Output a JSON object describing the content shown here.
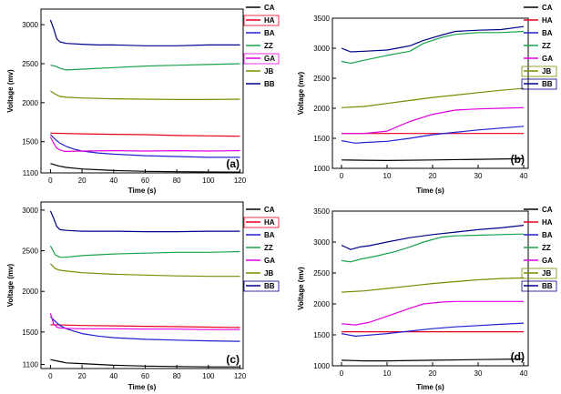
{
  "figure_title": "Voltage vs time, four panels",
  "colors": {
    "CA": "#000000",
    "HA": "#e8001e",
    "BA": "#2020d0",
    "ZZ": "#17a34a",
    "GA": "#e000e0",
    "JB": "#7a8a00",
    "BB": "#00008b"
  },
  "chart_data": [
    {
      "id": "a",
      "panel_label": "(a)",
      "type": "line",
      "xlabel": "Time (s)",
      "ylabel": "Voltage (mv)",
      "xlim": [
        -6,
        122
      ],
      "ylim": [
        1100,
        3200
      ],
      "xticks": [
        0,
        20,
        40,
        60,
        80,
        100,
        120
      ],
      "yticks": [
        1100,
        1500,
        2000,
        2500,
        3000
      ],
      "legend": [
        "CA",
        "HA",
        "BA",
        "ZZ",
        "GA",
        "JB",
        "BB"
      ],
      "legend_boxed": [
        "HA",
        "GA"
      ],
      "series": [
        {
          "name": "CA",
          "x": [
            0,
            5,
            10,
            20,
            40,
            60,
            80,
            100,
            120
          ],
          "values": [
            1220,
            1190,
            1170,
            1150,
            1130,
            1120,
            1115,
            1112,
            1110
          ]
        },
        {
          "name": "HA",
          "x": [
            0,
            20,
            40,
            60,
            80,
            100,
            120
          ],
          "values": [
            1610,
            1600,
            1595,
            1590,
            1580,
            1575,
            1570
          ]
        },
        {
          "name": "BA",
          "x": [
            0,
            3,
            6,
            10,
            15,
            20,
            30,
            40,
            60,
            80,
            100,
            120
          ],
          "values": [
            1590,
            1530,
            1480,
            1440,
            1405,
            1380,
            1355,
            1340,
            1320,
            1310,
            1300,
            1300
          ]
        },
        {
          "name": "ZZ",
          "x": [
            0,
            3,
            6,
            10,
            20,
            40,
            60,
            80,
            100,
            120
          ],
          "values": [
            2480,
            2470,
            2440,
            2420,
            2430,
            2450,
            2470,
            2480,
            2490,
            2500
          ]
        },
        {
          "name": "GA",
          "x": [
            0,
            2,
            4,
            6,
            8,
            10,
            20,
            40,
            60,
            80,
            100,
            120
          ],
          "values": [
            1560,
            1480,
            1420,
            1395,
            1380,
            1375,
            1380,
            1385,
            1380,
            1385,
            1380,
            1385
          ]
        },
        {
          "name": "JB",
          "x": [
            0,
            3,
            6,
            10,
            20,
            40,
            60,
            80,
            100,
            120
          ],
          "values": [
            2150,
            2110,
            2080,
            2070,
            2060,
            2050,
            2045,
            2040,
            2040,
            2045
          ]
        },
        {
          "name": "BB",
          "x": [
            0,
            2,
            4,
            6,
            10,
            20,
            30,
            40,
            60,
            80,
            100,
            120
          ],
          "values": [
            3060,
            2950,
            2820,
            2780,
            2760,
            2750,
            2740,
            2740,
            2730,
            2730,
            2740,
            2740
          ]
        }
      ]
    },
    {
      "id": "b",
      "panel_label": "(b)",
      "type": "line",
      "xlabel": "Time (s)",
      "ylabel": "Voltage (mv)",
      "xlim": [
        -2,
        41
      ],
      "ylim": [
        1000,
        3500
      ],
      "xticks": [
        0,
        10,
        20,
        30,
        40
      ],
      "yticks": [
        1000,
        1500,
        2000,
        2500,
        3000,
        3500
      ],
      "legend": [
        "CA",
        "HA",
        "BA",
        "ZZ",
        "GA",
        "JB",
        "BB"
      ],
      "legend_boxed": [
        "JB",
        "BB"
      ],
      "series": [
        {
          "name": "CA",
          "x": [
            0,
            5,
            10,
            20,
            30,
            40
          ],
          "values": [
            1140,
            1135,
            1130,
            1140,
            1150,
            1160
          ]
        },
        {
          "name": "HA",
          "x": [
            0,
            10,
            20,
            30,
            40
          ],
          "values": [
            1580,
            1580,
            1580,
            1580,
            1580
          ]
        },
        {
          "name": "BA",
          "x": [
            0,
            3,
            5,
            10,
            15,
            20,
            25,
            30,
            35,
            40
          ],
          "values": [
            1460,
            1420,
            1430,
            1450,
            1500,
            1560,
            1600,
            1640,
            1670,
            1700
          ]
        },
        {
          "name": "ZZ",
          "x": [
            0,
            2,
            5,
            10,
            15,
            18,
            22,
            25,
            30,
            35,
            40
          ],
          "values": [
            2780,
            2750,
            2800,
            2880,
            2950,
            3080,
            3180,
            3230,
            3260,
            3260,
            3280
          ]
        },
        {
          "name": "GA",
          "x": [
            0,
            5,
            10,
            15,
            20,
            25,
            30,
            35,
            40
          ],
          "values": [
            1580,
            1580,
            1620,
            1780,
            1900,
            1970,
            1990,
            2000,
            2010
          ]
        },
        {
          "name": "JB",
          "x": [
            0,
            5,
            10,
            15,
            20,
            25,
            30,
            35,
            40
          ],
          "values": [
            2010,
            2030,
            2080,
            2130,
            2180,
            2220,
            2260,
            2300,
            2330
          ]
        },
        {
          "name": "BB",
          "x": [
            0,
            2,
            5,
            10,
            15,
            18,
            22,
            25,
            30,
            35,
            40
          ],
          "values": [
            3000,
            2940,
            2950,
            2970,
            3040,
            3130,
            3220,
            3280,
            3300,
            3310,
            3360
          ]
        }
      ]
    },
    {
      "id": "c",
      "panel_label": "(c)",
      "type": "line",
      "xlabel": "Time (s)",
      "ylabel": "Voltage (mv)",
      "xlim": [
        -6,
        122
      ],
      "ylim": [
        1050,
        3100
      ],
      "xticks": [
        0,
        20,
        40,
        60,
        80,
        100,
        120
      ],
      "yticks": [
        1100,
        1500,
        2000,
        2500,
        3000
      ],
      "legend": [
        "CA",
        "HA",
        "BA",
        "ZZ",
        "GA",
        "JB",
        "BB"
      ],
      "legend_boxed": [
        "HA",
        "BB"
      ],
      "series": [
        {
          "name": "CA",
          "x": [
            0,
            5,
            10,
            20,
            40,
            60,
            80,
            100,
            120
          ],
          "values": [
            1160,
            1140,
            1120,
            1110,
            1090,
            1080,
            1075,
            1070,
            1070
          ]
        },
        {
          "name": "HA",
          "x": [
            0,
            20,
            40,
            60,
            80,
            100,
            120
          ],
          "values": [
            1590,
            1580,
            1575,
            1570,
            1565,
            1560,
            1555
          ]
        },
        {
          "name": "BA",
          "x": [
            0,
            3,
            6,
            10,
            15,
            20,
            30,
            40,
            60,
            80,
            100,
            120
          ],
          "values": [
            1690,
            1630,
            1580,
            1540,
            1510,
            1480,
            1450,
            1430,
            1410,
            1400,
            1390,
            1385
          ]
        },
        {
          "name": "ZZ",
          "x": [
            0,
            3,
            6,
            10,
            20,
            40,
            60,
            80,
            100,
            120
          ],
          "values": [
            2560,
            2450,
            2420,
            2420,
            2440,
            2460,
            2470,
            2480,
            2480,
            2490
          ]
        },
        {
          "name": "GA",
          "x": [
            0,
            2,
            4,
            6,
            10,
            20,
            40,
            60,
            80,
            100,
            120
          ],
          "values": [
            1730,
            1600,
            1560,
            1550,
            1545,
            1540,
            1540,
            1535,
            1535,
            1530,
            1530
          ]
        },
        {
          "name": "JB",
          "x": [
            0,
            3,
            6,
            10,
            20,
            40,
            60,
            80,
            100,
            120
          ],
          "values": [
            2340,
            2280,
            2260,
            2250,
            2230,
            2210,
            2200,
            2190,
            2185,
            2185
          ]
        },
        {
          "name": "BB",
          "x": [
            0,
            2,
            4,
            6,
            10,
            20,
            30,
            40,
            60,
            80,
            100,
            120
          ],
          "values": [
            2990,
            2900,
            2800,
            2760,
            2750,
            2740,
            2740,
            2740,
            2735,
            2735,
            2740,
            2740
          ]
        }
      ]
    },
    {
      "id": "d",
      "panel_label": "(d)",
      "type": "line",
      "xlabel": "Time (s)",
      "ylabel": "Voltage (mv)",
      "xlim": [
        -2,
        41
      ],
      "ylim": [
        1000,
        3500
      ],
      "xticks": [
        0,
        10,
        20,
        30,
        40
      ],
      "yticks": [
        1000,
        1500,
        2000,
        2500,
        3000,
        3500
      ],
      "legend": [
        "CA",
        "HA",
        "BA",
        "ZZ",
        "GA",
        "JB",
        "BB"
      ],
      "legend_boxed": [
        "JB",
        "BB"
      ],
      "series": [
        {
          "name": "CA",
          "x": [
            0,
            5,
            10,
            20,
            30,
            40
          ],
          "values": [
            1090,
            1080,
            1080,
            1090,
            1100,
            1110
          ]
        },
        {
          "name": "HA",
          "x": [
            0,
            10,
            20,
            30,
            40
          ],
          "values": [
            1550,
            1550,
            1550,
            1550,
            1550
          ]
        },
        {
          "name": "BA",
          "x": [
            0,
            3,
            5,
            10,
            15,
            20,
            25,
            30,
            35,
            40
          ],
          "values": [
            1520,
            1480,
            1490,
            1520,
            1560,
            1600,
            1630,
            1650,
            1670,
            1690
          ]
        },
        {
          "name": "ZZ",
          "x": [
            0,
            2,
            4,
            8,
            12,
            15,
            18,
            22,
            25,
            30,
            35,
            40
          ],
          "values": [
            2700,
            2680,
            2720,
            2780,
            2850,
            2920,
            3000,
            3080,
            3100,
            3110,
            3120,
            3130
          ]
        },
        {
          "name": "GA",
          "x": [
            0,
            3,
            6,
            10,
            15,
            18,
            22,
            25,
            30,
            35,
            40
          ],
          "values": [
            1680,
            1660,
            1700,
            1800,
            1930,
            2000,
            2030,
            2040,
            2040,
            2040,
            2040
          ]
        },
        {
          "name": "JB",
          "x": [
            0,
            5,
            10,
            15,
            20,
            25,
            30,
            35,
            40
          ],
          "values": [
            2190,
            2210,
            2250,
            2290,
            2330,
            2360,
            2390,
            2410,
            2420
          ]
        },
        {
          "name": "BB",
          "x": [
            0,
            2,
            4,
            6,
            10,
            15,
            20,
            25,
            30,
            35,
            40
          ],
          "values": [
            2950,
            2880,
            2920,
            2940,
            3000,
            3070,
            3120,
            3160,
            3200,
            3230,
            3270
          ]
        }
      ]
    }
  ]
}
